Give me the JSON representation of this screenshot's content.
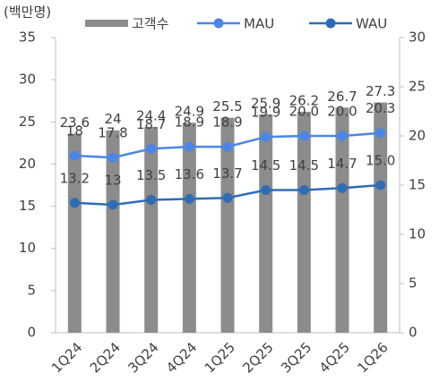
{
  "chart_data": {
    "type": "combo",
    "ylabel": "(백만명)",
    "categories": [
      "1Q24",
      "2Q24",
      "3Q24",
      "4Q24",
      "1Q25",
      "2Q25",
      "3Q25",
      "4Q25",
      "1Q26"
    ],
    "series": [
      {
        "name": "고객수",
        "type": "bar",
        "axis": "y",
        "color": "#8c8c8c",
        "values": [
          23.6,
          24,
          24.4,
          24.9,
          25.5,
          25.9,
          26.2,
          26.7,
          27.3
        ]
      },
      {
        "name": "MAU",
        "type": "line",
        "axis": "y2",
        "color": "#4a86e8",
        "values": [
          18,
          17.8,
          18.7,
          18.9,
          18.9,
          19.9,
          20.0,
          20.0,
          20.3
        ],
        "value_labels": [
          "18",
          "17.8",
          "18.7",
          "18.9",
          "18.9",
          "19.9",
          "20.0",
          "20.0",
          "20.3"
        ]
      },
      {
        "name": "WAU",
        "type": "line",
        "axis": "y2",
        "color": "#2e6db4",
        "values": [
          13.2,
          13,
          13.5,
          13.6,
          13.7,
          14.5,
          14.5,
          14.7,
          15.0
        ],
        "value_labels": [
          "13.2",
          "13",
          "13.5",
          "13.6",
          "13.7",
          "14.5",
          "14.5",
          "14.7",
          "15.0"
        ]
      }
    ],
    "ylim": [
      0,
      35
    ],
    "yticks": [
      0,
      5,
      10,
      15,
      20,
      25,
      30,
      35
    ],
    "y2lim": [
      0,
      30
    ],
    "y2ticks": [
      0,
      5,
      10,
      15,
      20,
      25,
      30
    ],
    "grid": false
  }
}
